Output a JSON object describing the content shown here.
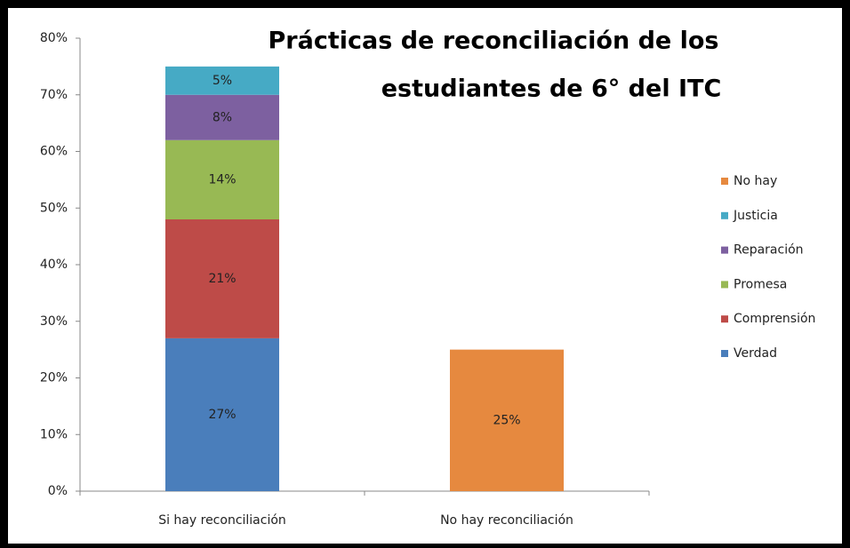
{
  "chart_data": {
    "type": "stacked_bar",
    "title": [
      "Prácticas de reconciliación de los",
      "estudiantes de 6° del ITC"
    ],
    "categories": [
      "Si hay reconciliación",
      "No hay reconciliación"
    ],
    "series": [
      {
        "name": "Verdad",
        "color": "#4a7ebb",
        "values": [
          27,
          null
        ],
        "value_labels": [
          "27%",
          null
        ]
      },
      {
        "name": "Comprensión",
        "color": "#be4b48",
        "values": [
          21,
          null
        ],
        "value_labels": [
          "21%",
          null
        ]
      },
      {
        "name": "Promesa",
        "color": "#98b954",
        "values": [
          14,
          null
        ],
        "value_labels": [
          "14%",
          null
        ]
      },
      {
        "name": "Reparación",
        "color": "#7d60a0",
        "values": [
          8,
          null
        ],
        "value_labels": [
          "8%",
          null
        ]
      },
      {
        "name": "Justicia",
        "color": "#46aac5",
        "values": [
          5,
          null
        ],
        "value_labels": [
          "5%",
          null
        ]
      },
      {
        "name": "No hay",
        "color": "#e6893f",
        "values": [
          null,
          25
        ],
        "value_labels": [
          null,
          "25%"
        ]
      }
    ],
    "ylim": [
      0,
      80
    ],
    "yticks": [
      {
        "value": 0,
        "label": "0%"
      },
      {
        "value": 10,
        "label": "10%"
      },
      {
        "value": 20,
        "label": "20%"
      },
      {
        "value": 30,
        "label": "30%"
      },
      {
        "value": 40,
        "label": "40%"
      },
      {
        "value": 50,
        "label": "50%"
      },
      {
        "value": 60,
        "label": "60%"
      },
      {
        "value": 70,
        "label": "70%"
      },
      {
        "value": 80,
        "label": "80%"
      }
    ],
    "legend": "right",
    "grid": false
  }
}
